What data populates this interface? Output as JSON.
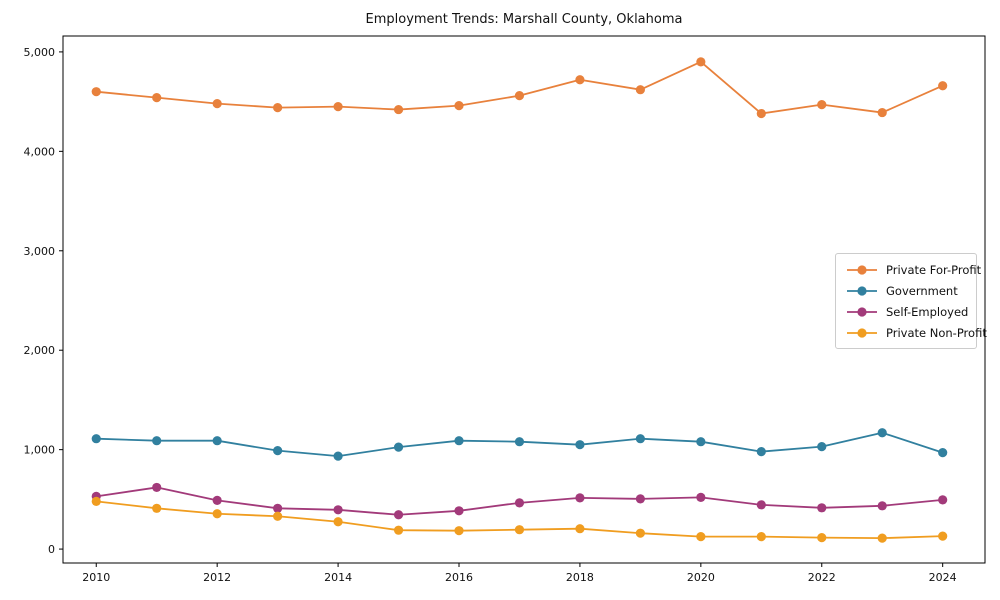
{
  "chart_data": {
    "type": "line",
    "title": "Employment Trends: Marshall County, Oklahoma",
    "xlabel": "",
    "ylabel": "",
    "grid": false,
    "legend_position": "center right",
    "marker": "circle",
    "x": [
      2010,
      2011,
      2012,
      2013,
      2014,
      2015,
      2016,
      2017,
      2018,
      2019,
      2020,
      2021,
      2022,
      2023,
      2024
    ],
    "series": [
      {
        "name": "Private For-Profit",
        "color": "#e8813c",
        "values": [
          4600,
          4540,
          4480,
          4440,
          4450,
          4420,
          4460,
          4560,
          4720,
          4620,
          4900,
          4380,
          4470,
          4390,
          4660
        ]
      },
      {
        "name": "Government",
        "color": "#31809f",
        "values": [
          1110,
          1090,
          1090,
          990,
          935,
          1025,
          1090,
          1080,
          1050,
          1110,
          1080,
          980,
          1030,
          1170,
          970
        ]
      },
      {
        "name": "Self-Employed",
        "color": "#a23a7a",
        "values": [
          530,
          620,
          490,
          410,
          395,
          345,
          385,
          465,
          515,
          505,
          520,
          445,
          415,
          435,
          495
        ]
      },
      {
        "name": "Private Non-Profit",
        "color": "#f09d20",
        "values": [
          480,
          410,
          355,
          330,
          275,
          190,
          185,
          195,
          205,
          160,
          125,
          125,
          115,
          110,
          130
        ]
      }
    ],
    "xticks": {
      "values": [
        2010,
        2012,
        2014,
        2016,
        2018,
        2020,
        2022,
        2024
      ],
      "labels": [
        "2010",
        "2012",
        "2014",
        "2016",
        "2018",
        "2020",
        "2022",
        "2024"
      ]
    },
    "yticks": {
      "values": [
        0,
        1000,
        2000,
        3000,
        4000,
        5000
      ],
      "labels": [
        "0",
        "1,000",
        "2,000",
        "3,000",
        "4,000",
        "5,000"
      ]
    },
    "xlim": [
      2009.45,
      2024.7
    ],
    "ylim": [
      -140,
      5160
    ]
  }
}
